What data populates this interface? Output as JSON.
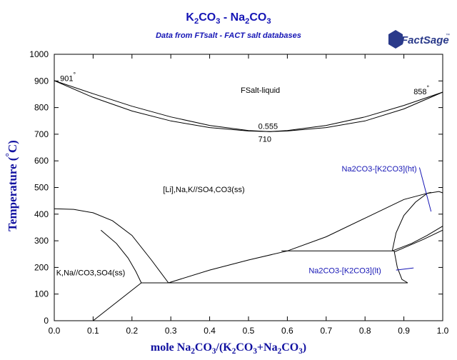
{
  "header": {
    "title_a": "K",
    "title_a_sub": "2",
    "title_b": "CO",
    "title_b_sub": "3",
    "title_c": " - Na",
    "title_c_sub": "2",
    "title_d": "CO",
    "title_d_sub": "3",
    "subtitle": "Data from FTsalt - FACT salt databases",
    "logo_text": "FactSage",
    "logo_tm": "™"
  },
  "axes": {
    "ylabel_text": "Temperature (",
    "ylabel_deg": "°",
    "ylabel_end": "C)",
    "xlabel_a": "mole Na",
    "xlabel_a_sub": "2",
    "xlabel_b": "CO",
    "xlabel_b_sub": "3",
    "xlabel_c": "/(K",
    "xlabel_c_sub": "2",
    "xlabel_d": "CO",
    "xlabel_d_sub": "3",
    "xlabel_e": "+Na",
    "xlabel_e_sub": "2",
    "xlabel_f": "CO",
    "xlabel_f_sub": "3",
    "xlabel_g": ")"
  },
  "chart_data": {
    "type": "line",
    "title": "K2CO3 - Na2CO3",
    "subtitle": "Data from FTsalt - FACT salt databases",
    "xlabel": "mole Na2CO3/(K2CO3+Na2CO3)",
    "ylabel": "Temperature (°C)",
    "xlim": [
      0,
      1
    ],
    "ylim": [
      0,
      1000
    ],
    "x_ticks": [
      "0.0",
      "0.1",
      "0.2",
      "0.3",
      "0.4",
      "0.5",
      "0.6",
      "0.7",
      "0.8",
      "0.9",
      "1.0"
    ],
    "y_ticks": [
      "0",
      "100",
      "200",
      "300",
      "400",
      "500",
      "600",
      "700",
      "800",
      "900",
      "1000"
    ],
    "grid": false,
    "line_color": "#000000",
    "accent_color": "#1515b5",
    "series": [
      {
        "id": "liquidus",
        "x": [
          0,
          0.1,
          0.2,
          0.3,
          0.4,
          0.5,
          0.555,
          0.6,
          0.7,
          0.8,
          0.9,
          1.0
        ],
        "y": [
          901,
          852,
          805,
          765,
          733,
          714,
          710,
          714,
          733,
          765,
          808,
          858
        ]
      },
      {
        "id": "solidus",
        "x": [
          0,
          0.1,
          0.2,
          0.3,
          0.4,
          0.5,
          0.555,
          0.6,
          0.7,
          0.8,
          0.9,
          1.0
        ],
        "y": [
          901,
          838,
          787,
          750,
          725,
          712,
          710,
          712,
          725,
          750,
          795,
          858
        ]
      },
      {
        "id": "solvus_left",
        "x": [
          0,
          0.05,
          0.1,
          0.15,
          0.2,
          0.25,
          0.294
        ],
        "y": [
          420,
          418,
          405,
          375,
          320,
          228,
          142
        ]
      },
      {
        "id": "solvus_left_inner",
        "x": [
          0.12,
          0.16,
          0.19,
          0.21,
          0.224
        ],
        "y": [
          340,
          290,
          235,
          185,
          142
        ]
      },
      {
        "id": "solvus_left_low",
        "x": [
          0.1,
          0.224
        ],
        "y": [
          0,
          142
        ]
      },
      {
        "id": "solvus_mid",
        "x": [
          0.294,
          0.4,
          0.5,
          0.6,
          0.7,
          0.8,
          0.9,
          0.97
        ],
        "y": [
          142,
          190,
          228,
          262,
          315,
          385,
          455,
          482
        ]
      },
      {
        "id": "eutectoid_line",
        "x": [
          0.224,
          0.91
        ],
        "y": [
          142,
          142
        ]
      },
      {
        "id": "ht_dome",
        "x": [
          0.87,
          0.88,
          0.9,
          0.93,
          0.96,
          0.99,
          1.0
        ],
        "y": [
          262,
          330,
          395,
          445,
          478,
          485,
          480
        ]
      },
      {
        "id": "ht_dome_right",
        "x": [
          0.87,
          0.92,
          0.96,
          1.0
        ],
        "y": [
          262,
          290,
          320,
          355
        ]
      },
      {
        "id": "peritectoid_line",
        "x": [
          0.585,
          0.875
        ],
        "y": [
          262,
          262
        ]
      },
      {
        "id": "lt_boundary",
        "x": [
          0.875,
          0.883,
          0.895,
          0.91
        ],
        "y": [
          262,
          200,
          155,
          142
        ]
      },
      {
        "id": "tie_line_inner",
        "x": [
          0.875,
          0.95,
          1.0
        ],
        "y": [
          258,
          305,
          340
        ]
      }
    ],
    "annotations": [
      {
        "text": "901",
        "sup": "°",
        "x": 0.015,
        "y": 900
      },
      {
        "text": "858",
        "sup": "°",
        "x": 0.925,
        "y": 850
      },
      {
        "text": "FSalt-liquid",
        "x": 0.48,
        "y": 855
      },
      {
        "text": "0.555",
        "x": 0.525,
        "y": 720
      },
      {
        "text": "710",
        "x": 0.525,
        "y": 672
      },
      {
        "text": "[Li],Na,K//SO4,CO3(ss)",
        "x": 0.28,
        "y": 482
      },
      {
        "text": "K,Na//CO3,SO4(ss)",
        "x": 0.005,
        "y": 170
      },
      {
        "text": "Na2CO3-[K2CO3](ht)",
        "x": 0.74,
        "y": 560,
        "color": "blue"
      },
      {
        "text": "Na2CO3-[K2CO3](lt)",
        "x": 0.655,
        "y": 178,
        "color": "blue"
      }
    ],
    "pointer_lines": [
      {
        "x": [
          0.94,
          0.97
        ],
        "y": [
          575,
          410
        ]
      },
      {
        "x": [
          0.88,
          0.925
        ],
        "y": [
          190,
          198
        ]
      }
    ]
  }
}
